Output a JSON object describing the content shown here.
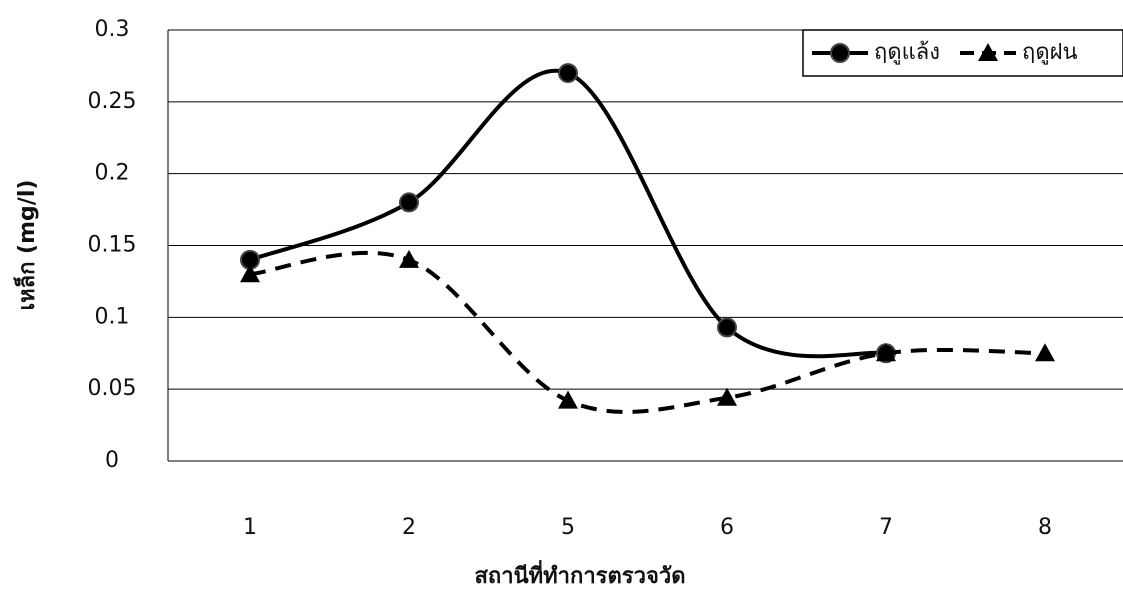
{
  "chart_data": {
    "type": "line",
    "x_label": "สถานีที่ทำการตรวจวัด",
    "y_label": "เหล็ก (mg/l)",
    "categories": [
      "1",
      "2",
      "5",
      "6",
      "7",
      "8"
    ],
    "series": [
      {
        "name": "ฤดูแล้ง",
        "color": "#000000",
        "marker": "circle",
        "line_style": "solid",
        "values": [
          0.14,
          0.18,
          0.27,
          0.093,
          0.075,
          null
        ]
      },
      {
        "name": "ฤดูฝน",
        "color": "#000000",
        "marker": "triangle",
        "line_style": "dashed",
        "values": [
          0.13,
          0.14,
          0.042,
          0.044,
          0.075,
          0.075
        ]
      }
    ],
    "ylim": [
      0,
      0.3
    ],
    "yticks": [
      0,
      0.05,
      0.1,
      0.15,
      0.2,
      0.25,
      0.3
    ],
    "grid": true,
    "legend": "upper right"
  }
}
